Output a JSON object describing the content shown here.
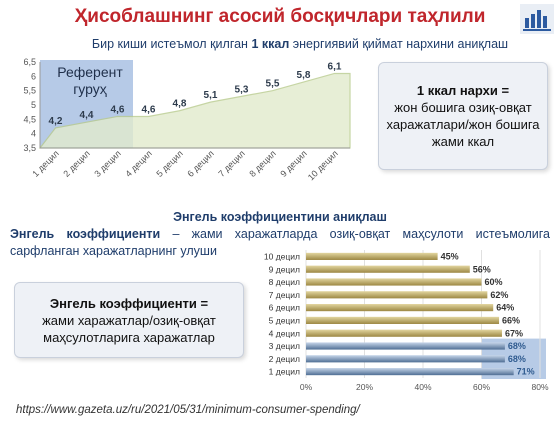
{
  "title": "Ҳисоблашнинг асосий босқичлари таҳлили",
  "subtitle1_pre": "Бир киши истеъмол қилган ",
  "subtitle1_bold": "1 ккал",
  "subtitle1_post": " энергиявий қиймат нархини аниқлаш",
  "subtitle2": "Энгель коэффициентини аниқлаш",
  "engel_def_bold": "Энгель коэффициенти",
  "engel_def_rest": " – жами харажатларда озиқ-овқат маҳсулоти истеъмолига сарфланган харажатларнинг улуши",
  "note1": {
    "heading": "1 ккал нархи =",
    "body": "жон бошига озиқ-овқат харажатлари/жон бошига жами ккал"
  },
  "note2": {
    "heading": "Энгель коэффициенти =",
    "body": "жами харажатлар/озиқ-овқат маҳсулотларига харажатлар"
  },
  "reference_group_label": "Референт гуруҳ",
  "source": "https://www.gazeta.uz/ru/2021/05/31/minimum-consumer-spending/",
  "chart_data": [
    {
      "type": "area",
      "categories": [
        "1 децил",
        "2 децил",
        "3 децил",
        "4 децил",
        "5 децил",
        "6 децил",
        "7 децил",
        "8 децил",
        "9 децил",
        "10 децил"
      ],
      "values": [
        4.2,
        4.4,
        4.6,
        4.6,
        4.8,
        5.1,
        5.3,
        5.5,
        5.8,
        6.1
      ],
      "data_labels": [
        "4,2",
        "4,4",
        "4,6",
        "4,6",
        "4,8",
        "5,1",
        "5,3",
        "5,5",
        "5,8",
        "6,1"
      ],
      "yticks": [
        "3,5",
        "4",
        "4,5",
        "5",
        "5,5",
        "6",
        "6,5"
      ],
      "ylim": [
        3.5,
        6.5
      ],
      "highlight_categories": [
        "1 децил",
        "2 децил",
        "3 децил"
      ],
      "colors": {
        "area": "#e2ebcd",
        "line": "#b9cb8e",
        "highlight": "#a9c1e3"
      }
    },
    {
      "type": "bar",
      "orientation": "horizontal",
      "categories": [
        "10 децил",
        "9 децил",
        "8 децил",
        "7 децил",
        "6 децил",
        "5 децил",
        "4 децил",
        "3 децил",
        "2 децил",
        "1 децил"
      ],
      "values": [
        45,
        56,
        60,
        62,
        64,
        66,
        67,
        68,
        68,
        71
      ],
      "data_labels": [
        "45%",
        "56%",
        "60%",
        "62%",
        "64%",
        "66%",
        "67%",
        "68%",
        "68%",
        "71%"
      ],
      "xticks": [
        "0%",
        "20%",
        "40%",
        "60%",
        "80%"
      ],
      "xlim": [
        0,
        80
      ],
      "highlight_categories": [
        "1 децил",
        "2 децил",
        "3 децил"
      ],
      "colors": {
        "bar": "#9c8743",
        "bar_top": "#e3d6a0",
        "highlight_bar": "#4f6e94",
        "highlight_bg": "#b7cbe6"
      }
    }
  ]
}
